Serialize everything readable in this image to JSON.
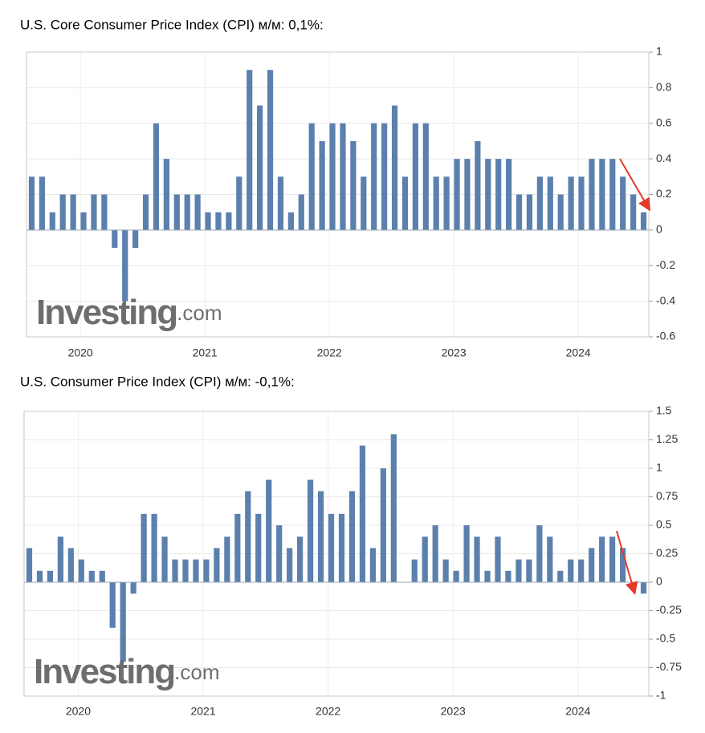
{
  "chart_data": [
    {
      "type": "bar",
      "title": "U.S. Core Consumer Price Index (CPI) м/м: 0,1%:",
      "watermark": {
        "brand": "Investing",
        "suffix": ".com"
      },
      "color": "#5b80ad",
      "grid": true,
      "categories": [
        null,
        null,
        null,
        null,
        null,
        null,
        null,
        null,
        null,
        null,
        null,
        null,
        null,
        null,
        null,
        null,
        null,
        null,
        null,
        null,
        null,
        null,
        null,
        null,
        null,
        null,
        null,
        null,
        null,
        null,
        null,
        null,
        null,
        null,
        null,
        null,
        null,
        null,
        null,
        null,
        null,
        null,
        null,
        null,
        null,
        null,
        null,
        null,
        null,
        null,
        null,
        null,
        null,
        null,
        null,
        null,
        null,
        null,
        null,
        null
      ],
      "values": [
        0.3,
        0.3,
        0.1,
        0.2,
        0.2,
        0.1,
        0.2,
        0.2,
        -0.1,
        -0.4,
        -0.1,
        0.2,
        0.6,
        0.4,
        0.2,
        0.2,
        0.2,
        0.1,
        0.1,
        0.1,
        0.3,
        0.9,
        0.7,
        0.9,
        0.3,
        0.1,
        0.2,
        0.6,
        0.5,
        0.6,
        0.6,
        0.5,
        0.3,
        0.6,
        0.6,
        0.7,
        0.3,
        0.6,
        0.6,
        0.3,
        0.3,
        0.4,
        0.4,
        0.5,
        0.4,
        0.4,
        0.4,
        0.2,
        0.2,
        0.3,
        0.3,
        0.2,
        0.3,
        0.3,
        0.4,
        0.4,
        0.4,
        0.3,
        0.2,
        0.1
      ],
      "xticks": [
        {
          "value": 4.7,
          "label": "2020"
        },
        {
          "value": 16.7,
          "label": "2021"
        },
        {
          "value": 28.7,
          "label": "2022"
        },
        {
          "value": 40.7,
          "label": "2023"
        },
        {
          "value": 52.7,
          "label": "2024"
        }
      ],
      "ylim": [
        -0.6,
        1
      ],
      "yticks": [
        -0.6,
        -0.4,
        -0.2,
        0,
        0.2,
        0.4,
        0.6,
        0.8,
        1
      ]
    },
    {
      "type": "bar",
      "title": "U.S. Consumer Price Index (CPI) м/м: -0,1%:",
      "watermark": {
        "brand": "Investing",
        "suffix": ".com"
      },
      "color": "#5b80ad",
      "grid": true,
      "categories": [
        null,
        null,
        null,
        null,
        null,
        null,
        null,
        null,
        null,
        null,
        null,
        null,
        null,
        null,
        null,
        null,
        null,
        null,
        null,
        null,
        null,
        null,
        null,
        null,
        null,
        null,
        null,
        null,
        null,
        null,
        null,
        null,
        null,
        null,
        null,
        null,
        null,
        null,
        null,
        null,
        null,
        null,
        null,
        null,
        null,
        null,
        null,
        null,
        null,
        null,
        null,
        null,
        null,
        null,
        null,
        null,
        null,
        null,
        null,
        null
      ],
      "values": [
        0.3,
        0.1,
        0.1,
        0.4,
        0.3,
        0.2,
        0.1,
        0.1,
        -0.4,
        -0.7,
        -0.1,
        0.6,
        0.6,
        0.4,
        0.2,
        0.2,
        0.2,
        0.2,
        0.3,
        0.4,
        0.6,
        0.8,
        0.6,
        0.9,
        0.5,
        0.3,
        0.4,
        0.9,
        0.8,
        0.6,
        0.6,
        0.8,
        1.2,
        0.3,
        1.0,
        1.3,
        0,
        0.2,
        0.4,
        0.5,
        0.2,
        0.1,
        0.5,
        0.4,
        0.1,
        0.4,
        0.1,
        0.2,
        0.2,
        0.5,
        0.4,
        0.1,
        0.2,
        0.2,
        0.3,
        0.4,
        0.4,
        0.3,
        0,
        -0.1
      ],
      "xticks": [
        {
          "value": 4.7,
          "label": "2020"
        },
        {
          "value": 16.7,
          "label": "2021"
        },
        {
          "value": 28.7,
          "label": "2022"
        },
        {
          "value": 40.7,
          "label": "2023"
        },
        {
          "value": 52.7,
          "label": "2024"
        }
      ],
      "ylim": [
        -1,
        1.5
      ],
      "yticks": [
        -1,
        -0.75,
        -0.5,
        -0.25,
        0,
        0.25,
        0.5,
        0.75,
        1,
        1.25,
        1.5
      ]
    }
  ]
}
